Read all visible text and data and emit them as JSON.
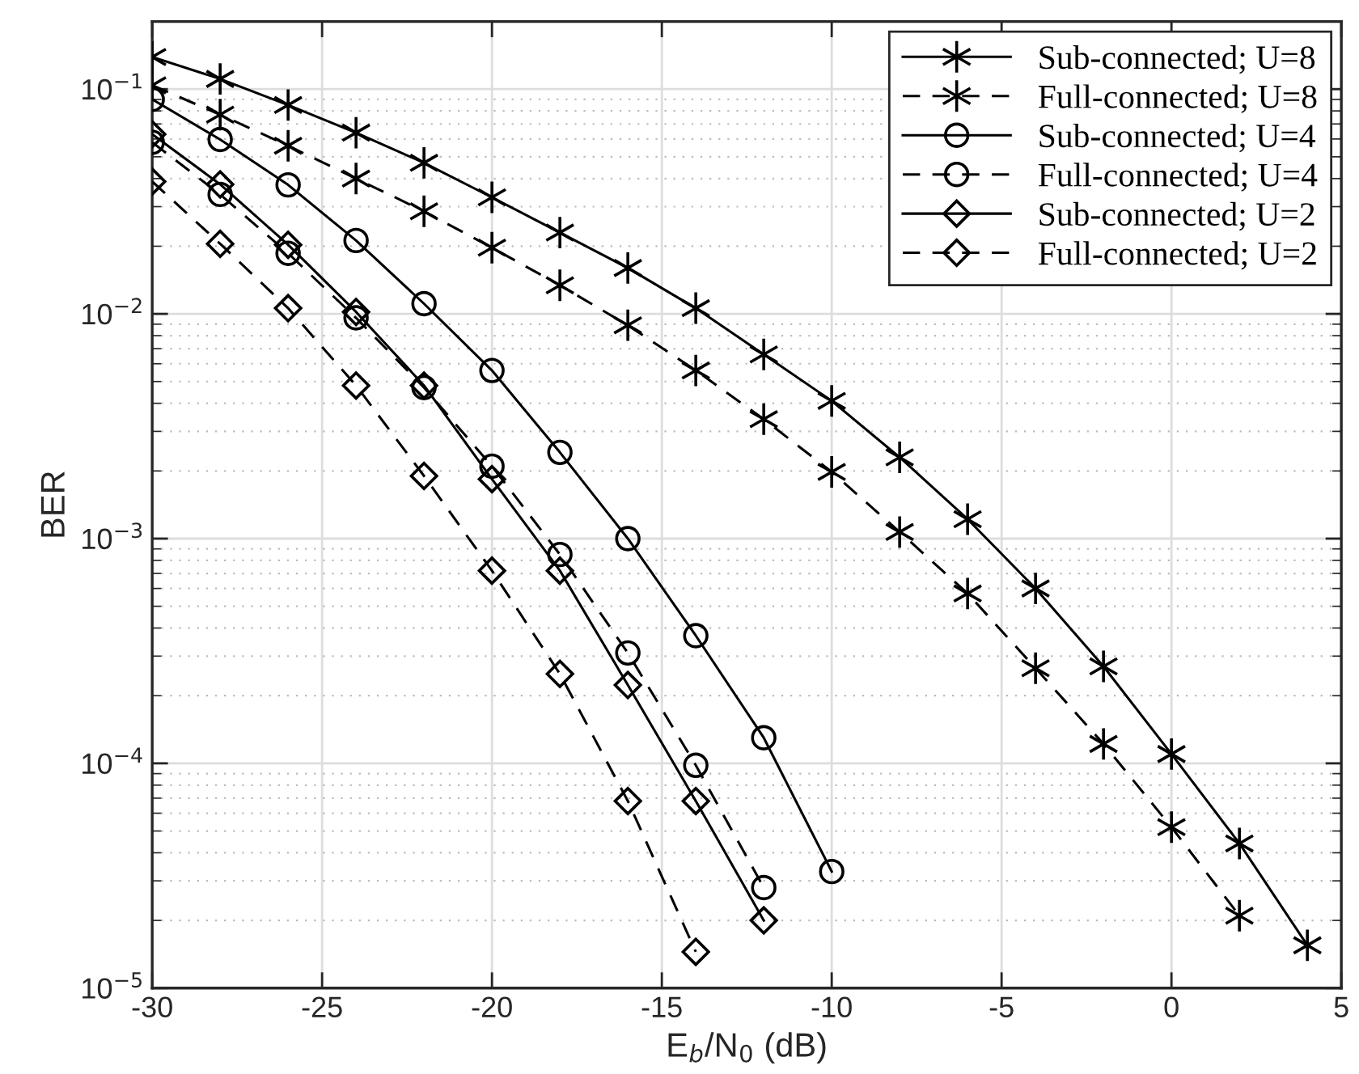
{
  "chart_data": {
    "type": "line",
    "xlabel": "E$_{b}$/N$_{0}$ (dB)",
    "ylabel": "BER",
    "log": "y",
    "xlim": [
      -30,
      5
    ],
    "xticks": [
      -30,
      -25,
      -20,
      -15,
      -10,
      -5,
      0,
      5
    ],
    "ylim": [
      1e-05,
      0.2
    ],
    "yticks": [
      {
        "value": 1e-05,
        "label": "10$^{−5}$"
      },
      {
        "value": 0.0001,
        "label": "10$^{−4}$"
      },
      {
        "value": 0.001,
        "label": "10$^{−3}$"
      },
      {
        "value": 0.01,
        "label": "10$^{−2}$"
      },
      {
        "value": 0.1,
        "label": "10$^{−1}$"
      }
    ],
    "grid": true,
    "legend": "top right",
    "series": [
      {
        "name": "Sub-connected; U=8",
        "color": "#000000",
        "marker": "cross",
        "line_style": "solid",
        "x": [
          -30,
          -28,
          -26,
          -24,
          -22,
          -20,
          -18,
          -16,
          -14,
          -12,
          -10,
          -8,
          -6,
          -4,
          -2,
          0,
          2,
          4
        ],
        "values": [
          0.139,
          0.111,
          0.085,
          0.064,
          0.047,
          0.033,
          0.023,
          0.016,
          0.0106,
          0.0066,
          0.0041,
          0.0023,
          0.00122,
          0.0006,
          0.00027,
          0.00011,
          4.4e-05,
          1.55e-05
        ]
      },
      {
        "name": "Full-connected; U=8",
        "color": "#000000",
        "marker": "cross",
        "line_style": "dashed",
        "x": [
          -30,
          -28,
          -26,
          -24,
          -22,
          -20,
          -18,
          -16,
          -14,
          -12,
          -10,
          -8,
          -6,
          -4,
          -2,
          0,
          2
        ],
        "values": [
          0.104,
          0.077,
          0.056,
          0.04,
          0.0286,
          0.0197,
          0.0134,
          0.0089,
          0.0056,
          0.0034,
          0.00198,
          0.00107,
          0.00057,
          0.000265,
          0.000122,
          5.2e-05,
          2.1e-05
        ]
      },
      {
        "name": "Sub-connected; U=4",
        "color": "#000000",
        "marker": "circle",
        "line_style": "solid",
        "x": [
          -30,
          -28,
          -26,
          -24,
          -22,
          -20,
          -18,
          -16,
          -14,
          -12,
          -10
        ],
        "values": [
          0.09,
          0.0597,
          0.0375,
          0.0212,
          0.0111,
          0.0056,
          0.00242,
          0.001,
          0.00037,
          0.00013,
          3.3e-05
        ]
      },
      {
        "name": "Full-connected; U=4",
        "color": "#000000",
        "marker": "circle",
        "line_style": "dashed",
        "x": [
          -30,
          -28,
          -26,
          -24,
          -22,
          -20,
          -18,
          -16,
          -14,
          -12
        ],
        "values": [
          0.058,
          0.034,
          0.0186,
          0.0096,
          0.0047,
          0.0021,
          0.00085,
          0.00031,
          9.8e-05,
          2.8e-05
        ]
      },
      {
        "name": "Sub-connected; U=2",
        "color": "#000000",
        "marker": "diamond",
        "line_style": "solid",
        "x": [
          -30,
          -28,
          -26,
          -24,
          -22,
          -20,
          -18,
          -16,
          -14,
          -12
        ],
        "values": [
          0.063,
          0.0377,
          0.0203,
          0.0102,
          0.0048,
          0.00184,
          0.00072,
          0.000223,
          6.8e-05,
          2e-05
        ]
      },
      {
        "name": "Full-connected; U=2",
        "color": "#000000",
        "marker": "diamond",
        "line_style": "dashed",
        "x": [
          -30,
          -28,
          -26,
          -24,
          -22,
          -20,
          -18,
          -16,
          -14
        ],
        "values": [
          0.0388,
          0.0205,
          0.0106,
          0.0048,
          0.0019,
          0.00072,
          0.00025,
          6.8e-05,
          1.45e-05
        ]
      }
    ]
  }
}
